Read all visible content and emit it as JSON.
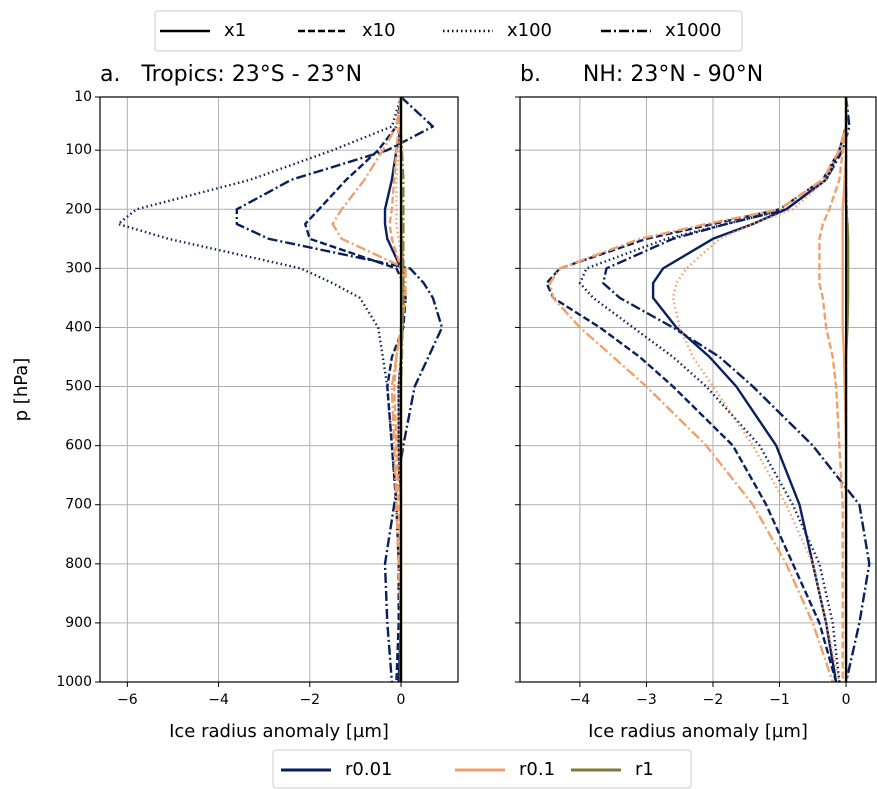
{
  "style_legend": [
    {
      "label": "x1",
      "dash": "solid"
    },
    {
      "label": "x10",
      "dash": "dashed"
    },
    {
      "label": "x100",
      "dash": "dotted"
    },
    {
      "label": "x1000",
      "dash": "dashdot"
    }
  ],
  "color_legend": [
    {
      "label": "r0.01",
      "color": "#0b1f5c"
    },
    {
      "label": "r0.1",
      "color": "#f1a06c"
    },
    {
      "label": "r1",
      "color": "#7c7c38"
    }
  ],
  "chart_data": [
    {
      "type": "line",
      "title": "a.   Tropics: 23°S - 23°N",
      "xlabel": "Ice radius anomaly [µm]",
      "ylabel": "p [hPa]",
      "xlim": [
        -6.6,
        1.25
      ],
      "ylim": [
        1000,
        10
      ],
      "xticks": [
        {
          "value": -6,
          "label": "−6"
        },
        {
          "value": -4,
          "label": "−4"
        },
        {
          "value": -2,
          "label": "−2"
        },
        0
      ],
      "yticks": [
        10,
        100,
        200,
        300,
        400,
        500,
        600,
        700,
        800,
        900,
        1000
      ],
      "show_ytick_labels": true,
      "grid": true,
      "reference_line": 0,
      "y": [
        10,
        60,
        100,
        150,
        200,
        225,
        250,
        300,
        325,
        350,
        400,
        450,
        500,
        600,
        700,
        800,
        900,
        1000
      ],
      "series": [
        {
          "color": "#0b1f5c",
          "dash": "solid",
          "values": [
            0,
            0,
            -0.1,
            -0.2,
            -0.35,
            -0.35,
            -0.3,
            0,
            0.05,
            0.05,
            0.03,
            0,
            -0.05,
            -0.05,
            0,
            0,
            0,
            -0.05
          ]
        },
        {
          "color": "#0b1f5c",
          "dash": "dashed",
          "values": [
            0,
            -0.1,
            -0.5,
            -1.2,
            -1.8,
            -2.1,
            -2.0,
            -0.1,
            0.05,
            0.1,
            0.05,
            -0.2,
            -0.3,
            -0.2,
            -0.1,
            -0.05,
            -0.05,
            -0.1
          ]
        },
        {
          "color": "#0b1f5c",
          "dash": "dotted",
          "values": [
            0,
            -0.2,
            -1.5,
            -3.3,
            -5.8,
            -6.2,
            -5.1,
            -2.2,
            -1.5,
            -0.9,
            -0.5,
            -0.4,
            -0.3,
            -0.2,
            -0.1,
            -0.05,
            0,
            -0.05
          ]
        },
        {
          "color": "#0b1f5c",
          "dash": "dashdot",
          "values": [
            0,
            0.7,
            -0.3,
            -2.4,
            -3.6,
            -3.6,
            -2.9,
            0.2,
            0.5,
            0.7,
            0.9,
            0.6,
            0.3,
            0.05,
            -0.15,
            -0.35,
            -0.3,
            -0.2
          ]
        },
        {
          "color": "#f1a06c",
          "dash": "solid",
          "values": [
            0,
            0,
            0,
            0,
            0,
            0,
            0.02,
            0.05,
            0.05,
            0.05,
            0.02,
            0,
            0,
            0,
            0,
            0,
            0,
            0
          ]
        },
        {
          "color": "#f1a06c",
          "dash": "dashed",
          "values": [
            0,
            -0.05,
            -0.1,
            -0.15,
            -0.2,
            -0.25,
            -0.2,
            0,
            0.05,
            0.05,
            0,
            -0.1,
            -0.15,
            -0.1,
            -0.05,
            0,
            0,
            0
          ]
        },
        {
          "color": "#f1a06c",
          "dash": "dotted",
          "values": [
            0,
            0,
            -0.05,
            -0.1,
            -0.1,
            -0.1,
            -0.05,
            0.05,
            0.05,
            0.05,
            0.02,
            0,
            -0.05,
            -0.05,
            0,
            0,
            0,
            0
          ]
        },
        {
          "color": "#f1a06c",
          "dash": "dashdot",
          "values": [
            0,
            -0.1,
            -0.4,
            -0.8,
            -1.3,
            -1.5,
            -1.3,
            0.1,
            0.1,
            0.1,
            0,
            -0.1,
            -0.2,
            -0.15,
            -0.1,
            -0.05,
            0,
            0
          ]
        },
        {
          "color": "#7c7c38",
          "dash": "solid",
          "values": [
            0,
            0,
            0,
            0,
            0,
            0,
            0,
            0,
            0,
            0,
            0,
            0,
            0,
            0,
            0,
            0,
            0,
            0
          ]
        },
        {
          "color": "#7c7c38",
          "dash": "dashed",
          "values": [
            0,
            0,
            0,
            0,
            0.02,
            0.02,
            0.02,
            0.03,
            0.03,
            0.03,
            0.02,
            0,
            0,
            0,
            0,
            0,
            0,
            0
          ]
        },
        {
          "color": "#7c7c38",
          "dash": "dotted",
          "values": [
            0,
            0,
            0,
            0.02,
            0.03,
            0.03,
            0.03,
            0.03,
            0.03,
            0.03,
            0.02,
            0.01,
            0,
            0,
            0,
            0,
            0,
            0
          ]
        },
        {
          "color": "#7c7c38",
          "dash": "dashdot",
          "values": [
            0,
            0,
            0.02,
            0.05,
            0.05,
            0.05,
            0.05,
            0.05,
            0.05,
            0.05,
            0.03,
            0.02,
            0,
            0,
            0,
            0,
            0,
            0
          ]
        }
      ]
    },
    {
      "type": "line",
      "title": "b.      NH: 23°N - 90°N",
      "xlabel": "Ice radius anomaly [µm]",
      "xlim": [
        -4.9,
        0.45
      ],
      "ylim": [
        1000,
        10
      ],
      "xticks": [
        {
          "value": -4,
          "label": "−4"
        },
        {
          "value": -3,
          "label": "−3"
        },
        {
          "value": -2,
          "label": "−2"
        },
        {
          "value": -1,
          "label": "−1"
        },
        0
      ],
      "yticks": [
        10,
        100,
        200,
        300,
        400,
        500,
        600,
        700,
        800,
        900,
        1000
      ],
      "show_ytick_labels": false,
      "grid": true,
      "reference_line": 0,
      "y": [
        10,
        60,
        100,
        150,
        200,
        225,
        250,
        300,
        325,
        350,
        400,
        450,
        500,
        600,
        700,
        800,
        900,
        1000
      ],
      "series": [
        {
          "color": "#0b1f5c",
          "dash": "solid",
          "values": [
            0,
            0,
            -0.1,
            -0.3,
            -0.9,
            -1.4,
            -2.0,
            -2.75,
            -2.9,
            -2.9,
            -2.55,
            -2.05,
            -1.65,
            -1.05,
            -0.7,
            -0.5,
            -0.3,
            -0.15
          ]
        },
        {
          "color": "#0b1f5c",
          "dash": "dashed",
          "values": [
            0,
            0,
            -0.1,
            -0.35,
            -1.0,
            -2.0,
            -3.0,
            -4.3,
            -4.5,
            -4.4,
            -3.7,
            -3.1,
            -2.6,
            -1.7,
            -1.2,
            -0.8,
            -0.4,
            -0.15
          ]
        },
        {
          "color": "#0b1f5c",
          "dash": "dotted",
          "values": [
            0,
            0,
            -0.1,
            -0.3,
            -0.9,
            -1.8,
            -2.7,
            -3.9,
            -4.0,
            -3.8,
            -3.2,
            -2.6,
            -2.1,
            -1.3,
            -0.8,
            -0.4,
            -0.2,
            -0.1
          ]
        },
        {
          "color": "#0b1f5c",
          "dash": "dashdot",
          "values": [
            0,
            0.05,
            -0.05,
            -0.3,
            -0.9,
            -1.8,
            -2.6,
            -3.6,
            -3.65,
            -3.4,
            -2.6,
            -1.9,
            -1.4,
            -0.5,
            0.2,
            0.35,
            0.2,
            0
          ]
        },
        {
          "color": "#f1a06c",
          "dash": "solid",
          "values": [
            0,
            0,
            0,
            -0.02,
            -0.05,
            -0.05,
            -0.05,
            -0.05,
            -0.05,
            -0.05,
            -0.05,
            -0.03,
            -0.02,
            0,
            0,
            0,
            0,
            0
          ]
        },
        {
          "color": "#f1a06c",
          "dash": "dashed",
          "values": [
            0,
            0,
            -0.05,
            -0.1,
            -0.25,
            -0.35,
            -0.4,
            -0.4,
            -0.4,
            -0.35,
            -0.3,
            -0.2,
            -0.15,
            -0.1,
            -0.05,
            -0.05,
            -0.05,
            -0.05
          ]
        },
        {
          "color": "#f1a06c",
          "dash": "dotted",
          "values": [
            0,
            0,
            -0.1,
            -0.3,
            -0.8,
            -1.4,
            -1.9,
            -2.4,
            -2.55,
            -2.6,
            -2.5,
            -2.3,
            -2.0,
            -1.4,
            -0.9,
            -0.5,
            -0.3,
            -0.1
          ]
        },
        {
          "color": "#f1a06c",
          "dash": "dashdot",
          "values": [
            0,
            0,
            -0.1,
            -0.35,
            -1.0,
            -2.1,
            -3.1,
            -4.3,
            -4.45,
            -4.4,
            -4.0,
            -3.5,
            -3.0,
            -2.1,
            -1.4,
            -0.9,
            -0.5,
            -0.2
          ]
        },
        {
          "color": "#7c7c38",
          "dash": "solid",
          "values": [
            0,
            0,
            0,
            0,
            0,
            0.02,
            0.03,
            0.03,
            0.03,
            0.03,
            0.02,
            0,
            0,
            0,
            0,
            0,
            0,
            0
          ]
        },
        {
          "color": "#7c7c38",
          "dash": "dashed",
          "values": [
            0,
            0,
            0,
            0,
            0,
            0.01,
            0.02,
            0.02,
            0.02,
            0.02,
            0.01,
            0,
            0,
            0,
            0,
            0,
            0,
            0
          ]
        },
        {
          "color": "#7c7c38",
          "dash": "dotted",
          "values": [
            0,
            0,
            0,
            0,
            0,
            0,
            0.01,
            0.01,
            0.01,
            0.01,
            0,
            0,
            0,
            0,
            0,
            0,
            0,
            0
          ]
        },
        {
          "color": "#7c7c38",
          "dash": "dashdot",
          "values": [
            0,
            0,
            0,
            0,
            0.01,
            0.02,
            0.02,
            0.02,
            0.02,
            0.02,
            0.01,
            0,
            0,
            0,
            0,
            0,
            0,
            0
          ]
        }
      ]
    }
  ]
}
